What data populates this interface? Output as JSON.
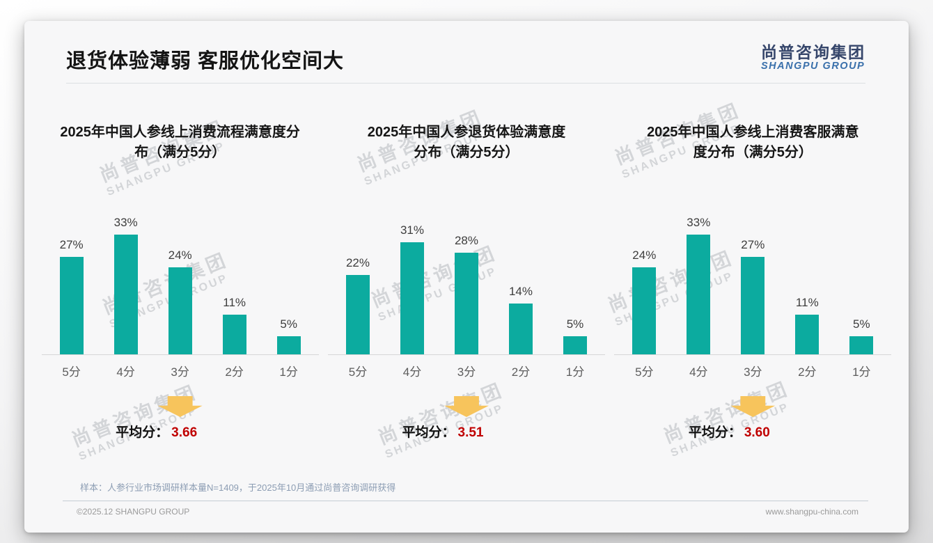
{
  "page": {
    "title": "退货体验薄弱 客服优化空间大",
    "logo_cn": "尚普咨询集团",
    "logo_en": "SHANGPU GROUP",
    "watermark_cn": "尚普咨询集团",
    "watermark_en": "SHANGPU GROUP"
  },
  "chart_data": [
    {
      "type": "bar",
      "title": "2025年中国人参线上消费流程满意度分\n布（满分5分）",
      "categories": [
        "5分",
        "4分",
        "3分",
        "2分",
        "1分"
      ],
      "values": [
        27,
        33,
        24,
        11,
        5
      ],
      "value_suffix": "%",
      "ylim": [
        0,
        35
      ],
      "grid": false,
      "average_label": "平均分：",
      "average": "3.66"
    },
    {
      "type": "bar",
      "title": "2025年中国人参退货体验满意度\n分布（满分5分）",
      "categories": [
        "5分",
        "4分",
        "3分",
        "2分",
        "1分"
      ],
      "values": [
        22,
        31,
        28,
        14,
        5
      ],
      "value_suffix": "%",
      "ylim": [
        0,
        35
      ],
      "grid": false,
      "average_label": "平均分：",
      "average": "3.51"
    },
    {
      "type": "bar",
      "title": "2025年中国人参线上消费客服满意\n度分布（满分5分）",
      "categories": [
        "5分",
        "4分",
        "3分",
        "2分",
        "1分"
      ],
      "values": [
        24,
        33,
        27,
        11,
        5
      ],
      "value_suffix": "%",
      "ylim": [
        0,
        35
      ],
      "grid": false,
      "average_label": "平均分：",
      "average": "3.60"
    }
  ],
  "colors": {
    "bar_teal": "#0cab9f",
    "average_red": "#c00000",
    "arrow_yellow": "#f7c45c",
    "logo_navy": "#36466b",
    "logo_blue": "#3a70ab"
  },
  "footer": {
    "sample_note": "样本：人参行业市场调研样本量N=1409，于2025年10月通过尚普咨询调研获得",
    "copyright": "©2025.12 SHANGPU GROUP",
    "website": "www.shangpu-china.com"
  }
}
